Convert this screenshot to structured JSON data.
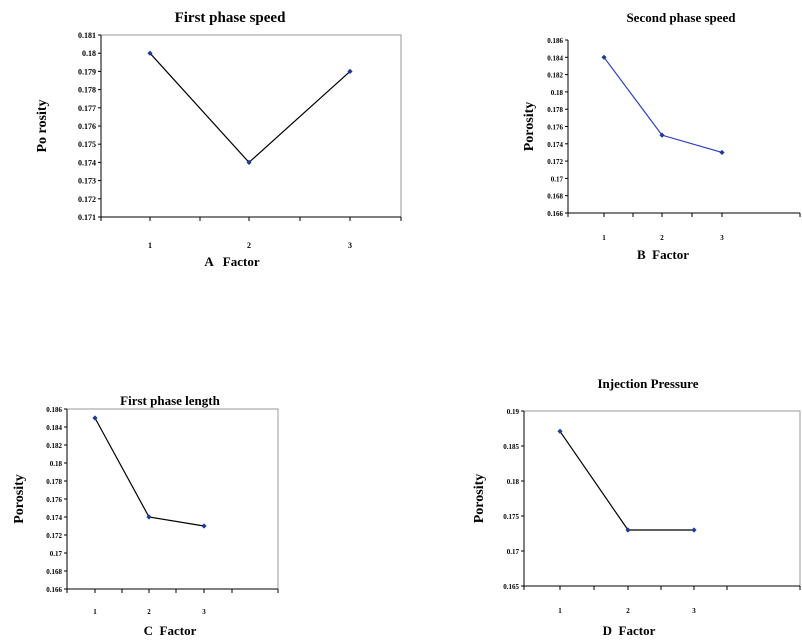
{
  "chart_data": [
    {
      "type": "line",
      "title": "First phase speed",
      "xlabel": "A   Factor",
      "ylabel": "Po rosity",
      "categories": [
        "1",
        "2",
        "3"
      ],
      "values": [
        0.18,
        0.174,
        0.179
      ],
      "ylim": [
        0.171,
        0.181
      ],
      "yticks": [
        "0.181",
        "0.18",
        "0.179",
        "0.178",
        "0.177",
        "0.176",
        "0.175",
        "0.174",
        "0.173",
        "0.172",
        "0.171"
      ],
      "line_color": "#000000",
      "marker_color": "#1f3a93",
      "grid": false,
      "plot_border": true
    },
    {
      "type": "line",
      "title": "Second phase speed",
      "xlabel": "B  Factor",
      "ylabel": "Porosity",
      "categories": [
        "1",
        "2",
        "3"
      ],
      "values": [
        0.184,
        0.175,
        0.173
      ],
      "ylim": [
        0.166,
        0.186
      ],
      "yticks": [
        "0.186",
        "0.184",
        "0.182",
        "0.18",
        "0.178",
        "0.176",
        "0.174",
        "0.172",
        "0.17",
        "0.168",
        "0.166"
      ],
      "line_color": "#2b3fc7",
      "marker_color": "#1f3a93",
      "grid": false,
      "plot_border": false
    },
    {
      "type": "line",
      "title": "First phase length",
      "xlabel": "C  Factor",
      "ylabel": "Porosity",
      "categories": [
        "1",
        "2",
        "3"
      ],
      "values": [
        0.185,
        0.174,
        0.173
      ],
      "ylim": [
        0.166,
        0.186
      ],
      "yticks": [
        "0.186",
        "0.184",
        "0.182",
        "0.18",
        "0.178",
        "0.176",
        "0.174",
        "0.172",
        "0.17",
        "0.168",
        "0.166"
      ],
      "line_color": "#000000",
      "marker_color": "#1f3a93",
      "grid": false,
      "plot_border": true
    },
    {
      "type": "line",
      "title": "Injection Pressure",
      "xlabel": "D  Factor",
      "ylabel": "Porosity",
      "categories": [
        "1",
        "2",
        "3"
      ],
      "values": [
        0.1871,
        0.173,
        0.173
      ],
      "ylim": [
        0.165,
        0.19
      ],
      "yticks": [
        "0.19",
        "0.185",
        "0.18",
        "0.175",
        "0.17",
        "0.165"
      ],
      "line_color": "#000000",
      "marker_color": "#1f3a93",
      "grid": false,
      "plot_border": true
    }
  ]
}
